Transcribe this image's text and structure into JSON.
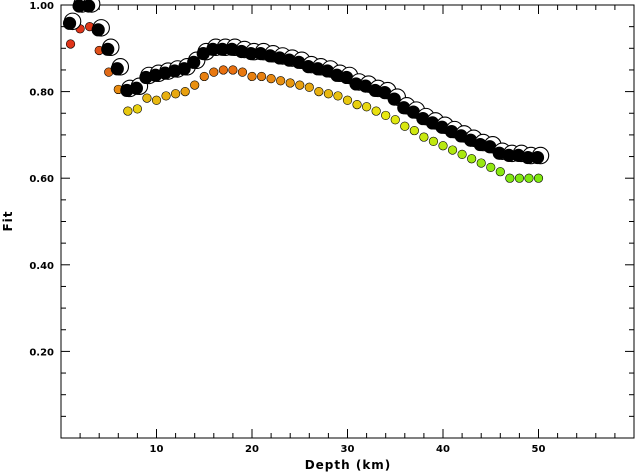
{
  "chart_data": {
    "type": "scatter",
    "xlabel": "Depth (km)",
    "ylabel": "Fit",
    "xlim": [
      0,
      60
    ],
    "ylim": [
      0,
      1.0
    ],
    "x_ticks": [
      10,
      20,
      30,
      40,
      50
    ],
    "x_tick_labels": [
      "10",
      "20",
      "30",
      "40",
      "50"
    ],
    "y_ticks": [
      0.2,
      0.4,
      0.6,
      0.8,
      1.0
    ],
    "y_tick_labels": [
      "0.20",
      "0.40",
      "0.60",
      "0.80",
      "1.00"
    ],
    "grid": false,
    "series": [
      {
        "marker": "large black circle (best fit)",
        "x": [
          1,
          2,
          3,
          4,
          5,
          6,
          7,
          8,
          9,
          10,
          11,
          12,
          13,
          14,
          15,
          16,
          17,
          18,
          19,
          20,
          21,
          22,
          23,
          24,
          25,
          26,
          27,
          28,
          29,
          30,
          31,
          32,
          33,
          34,
          35,
          36,
          37,
          38,
          39,
          40,
          41,
          42,
          43,
          44,
          45,
          46,
          47,
          48,
          49,
          50
        ],
        "y": [
          0.96,
          1.0,
          1.0,
          0.945,
          0.9,
          0.855,
          0.805,
          0.81,
          0.835,
          0.84,
          0.845,
          0.85,
          0.855,
          0.87,
          0.89,
          0.9,
          0.9,
          0.9,
          0.895,
          0.89,
          0.89,
          0.885,
          0.88,
          0.875,
          0.87,
          0.86,
          0.855,
          0.85,
          0.84,
          0.835,
          0.82,
          0.815,
          0.805,
          0.8,
          0.785,
          0.765,
          0.755,
          0.74,
          0.73,
          0.72,
          0.71,
          0.7,
          0.69,
          0.68,
          0.675,
          0.66,
          0.655,
          0.655,
          0.65,
          0.65
        ]
      },
      {
        "marker": "small colored circle",
        "x": [
          1,
          2,
          3,
          4,
          5,
          6,
          7,
          8,
          9,
          10,
          11,
          12,
          13,
          14,
          15,
          16,
          17,
          18,
          19,
          20,
          21,
          22,
          23,
          24,
          25,
          26,
          27,
          28,
          29,
          30,
          31,
          32,
          33,
          34,
          35,
          36,
          37,
          38,
          39,
          40,
          41,
          42,
          43,
          44,
          45,
          46,
          47,
          48,
          49,
          50
        ],
        "y": [
          0.91,
          0.945,
          0.95,
          0.895,
          0.845,
          0.805,
          0.755,
          0.76,
          0.785,
          0.78,
          0.79,
          0.795,
          0.8,
          0.815,
          0.835,
          0.845,
          0.85,
          0.85,
          0.845,
          0.835,
          0.835,
          0.83,
          0.825,
          0.82,
          0.815,
          0.81,
          0.8,
          0.795,
          0.79,
          0.78,
          0.77,
          0.765,
          0.755,
          0.745,
          0.735,
          0.72,
          0.71,
          0.695,
          0.685,
          0.675,
          0.665,
          0.655,
          0.645,
          0.635,
          0.625,
          0.615,
          0.6,
          0.6,
          0.6,
          0.6
        ],
        "colors": [
          "#e0351a",
          "#e0351a",
          "#e03a1a",
          "#e0501a",
          "#e06a18",
          "#e88a10",
          "#e8c810",
          "#e8d010",
          "#e8b810",
          "#e8b810",
          "#e8b010",
          "#e8a810",
          "#e8a010",
          "#e89010",
          "#e88010",
          "#e87810",
          "#e87010",
          "#e87010",
          "#e87810",
          "#e88010",
          "#e88010",
          "#e88810",
          "#e89010",
          "#e89810",
          "#e8a010",
          "#e8a810",
          "#e8b010",
          "#e8b810",
          "#e8c010",
          "#e8c810",
          "#e8d010",
          "#e8d810",
          "#e8e010",
          "#e8e810",
          "#e0e810",
          "#d8e810",
          "#d0e810",
          "#c8e810",
          "#c0e810",
          "#b8e810",
          "#b0e810",
          "#a8e810",
          "#a0e810",
          "#98e810",
          "#90e810",
          "#88e810",
          "#80e810",
          "#80e810",
          "#80e810",
          "#80e810"
        ]
      }
    ]
  }
}
